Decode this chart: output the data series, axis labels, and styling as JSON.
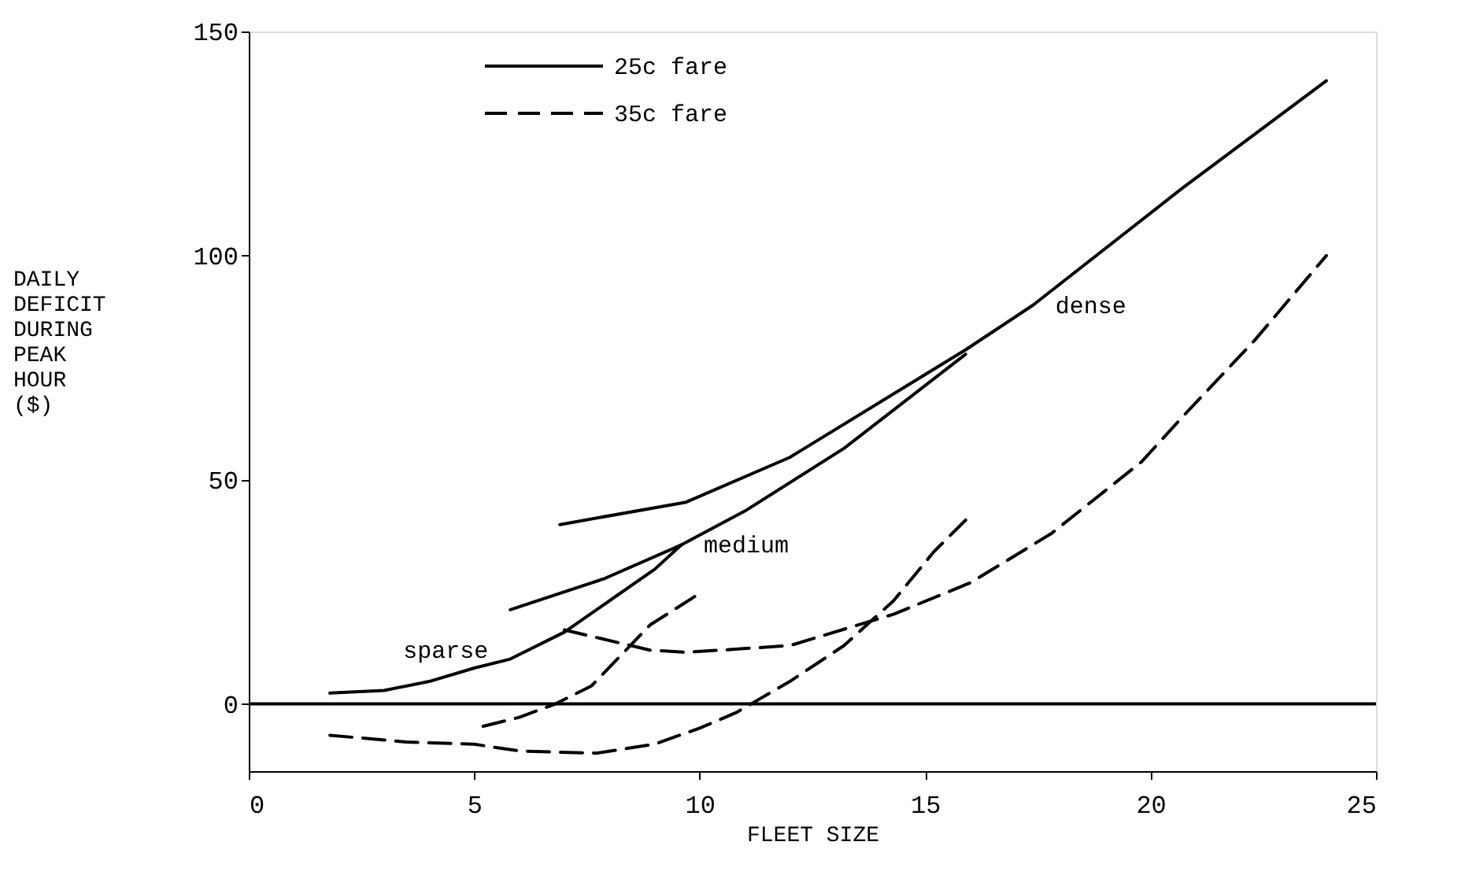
{
  "chart_data": {
    "type": "line",
    "xlabel": "FLEET SIZE",
    "ylabel": "DAILY\nDEFICIT\nDURING\nPEAK\nHOUR\n($)",
    "xlim": [
      0,
      25
    ],
    "xticks": [
      0,
      5,
      10,
      15,
      20,
      25
    ],
    "ylim": [
      -15,
      150
    ],
    "yticks": [
      0,
      50,
      100,
      150
    ],
    "grid": false,
    "legend": "top left",
    "marker": "none",
    "series": [
      {
        "name": "25c fare",
        "color": "#000000",
        "line_style": "solid",
        "x": [
          1.8,
          3,
          4,
          5,
          5.8,
          7,
          8,
          9,
          9.6
        ],
        "values": [
          2.4,
          3,
          5,
          8,
          10,
          16,
          23,
          30,
          35.5
        ]
      },
      {
        "color": "#000000",
        "line_style": "solid",
        "x": [
          5.8,
          7.9,
          9.6,
          11,
          13.2,
          15.9
        ],
        "values": [
          21,
          28,
          35.5,
          43,
          57,
          78
        ]
      },
      {
        "color": "#000000",
        "line_style": "solid",
        "x": [
          6.9,
          9.7,
          12,
          15.9,
          17.4,
          20.7,
          23.9
        ],
        "values": [
          40,
          45,
          55,
          79,
          89,
          115,
          139
        ]
      },
      {
        "name": "35c fare",
        "color": "#000000",
        "line_style": "dashed",
        "x": [
          5.2,
          6,
          6.8,
          7.6,
          8.9,
          9.9
        ],
        "values": [
          -5,
          -3,
          0,
          4,
          17.6,
          24
        ]
      },
      {
        "color": "#000000",
        "line_style": "dashed",
        "x": [
          1.8,
          3.5,
          5,
          6,
          7.7,
          9,
          10,
          10.8,
          12,
          13.2,
          14.3,
          15.2,
          15.9
        ],
        "values": [
          -7,
          -8.5,
          -9,
          -10.5,
          -11,
          -9,
          -5.4,
          -2,
          5,
          13,
          23,
          34,
          41
        ]
      },
      {
        "color": "#000000",
        "line_style": "dashed",
        "x": [
          7,
          8.9,
          9.7,
          12,
          14.3,
          16,
          17.8,
          19.8,
          20.8,
          22.3,
          23.9
        ],
        "values": [
          16.5,
          12,
          11.5,
          13,
          20,
          27,
          38,
          54,
          65,
          81,
          100
        ]
      }
    ],
    "ref_lines": [
      {
        "axis": "y",
        "value": 0,
        "color": "#000000",
        "line_style": "solid"
      }
    ],
    "annotations": [
      {
        "text": "sparse",
        "x": 5.8,
        "y": 10
      },
      {
        "text": "medium",
        "x": 9.6,
        "y": 35.5
      },
      {
        "text": "dense",
        "x": 17.4,
        "y": 89
      }
    ]
  }
}
